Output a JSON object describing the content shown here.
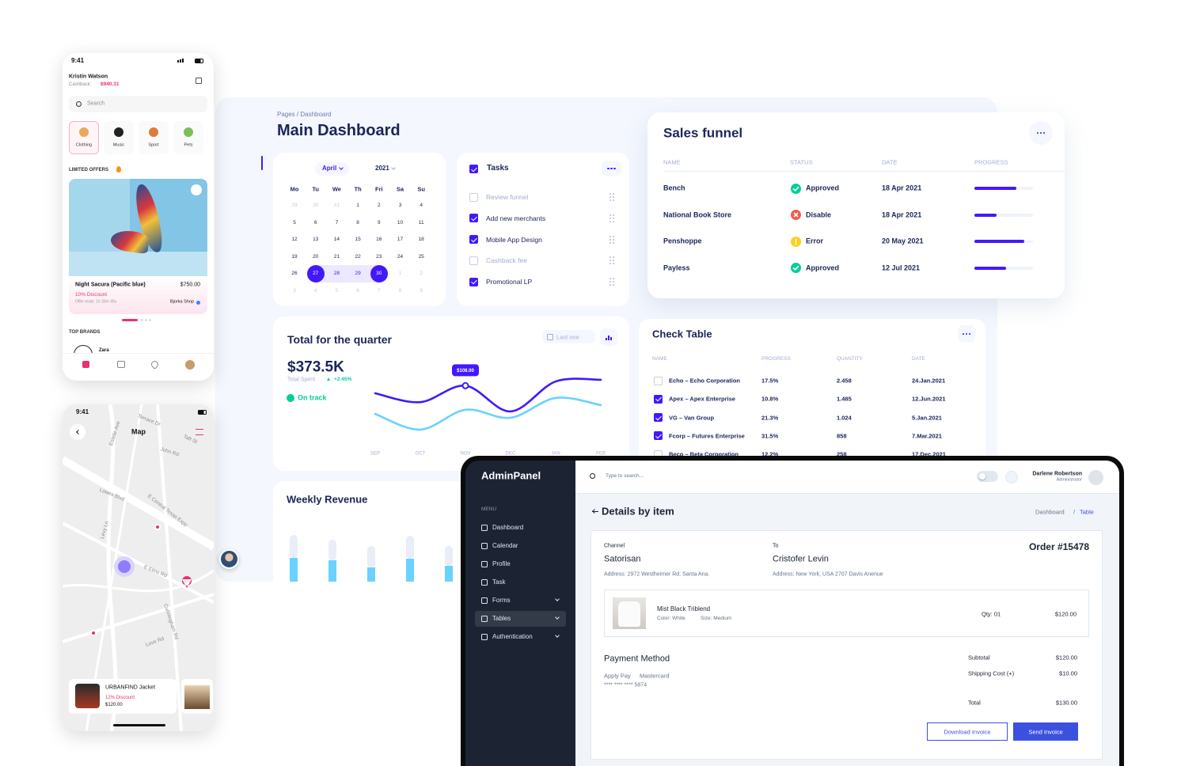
{
  "phone_shop": {
    "time": "9:41",
    "user": "Kristin Watson",
    "cashback_label": "Cashback:",
    "cashback": "$940.31",
    "search": "Search",
    "categories": [
      "Clothing",
      "Music",
      "Sport",
      "Pets"
    ],
    "offers_title": "LIMITED OFFERS",
    "product": {
      "name": "Night Sacura (Pacific blue)",
      "price": "$750.00",
      "discount": "10% Discount",
      "offer_ends": "Offer ends: 1h 30m 45s",
      "shop": "Bjorka Shop"
    },
    "brands_title": "TOP BRANDS",
    "brand": "Zara"
  },
  "phone_map": {
    "time": "9:41",
    "title": "Map",
    "streets": [
      "Terrace Dr",
      "Taft St",
      "John Rd",
      "Estelle Ave",
      "Lowes Blvd",
      "E Central Texas Expy",
      "Levy Ln",
      "E Elms Rd",
      "Cunningham Rd",
      "Love Rd"
    ],
    "product": {
      "name": "URBANFIND Jacket",
      "discount": "12% Discount",
      "price": "$120.00"
    }
  },
  "dashboard": {
    "breadcrumb": "Pages / Dashboard",
    "title": "Main Dashboard",
    "calendar": {
      "month": "April",
      "year": "2021",
      "weekdays": [
        "Mo",
        "Tu",
        "We",
        "Th",
        "Fri",
        "Sa",
        "Su"
      ],
      "prev_month": [
        29,
        30,
        31
      ],
      "month_days": [
        1,
        2,
        3,
        4,
        5,
        6,
        7,
        8,
        9,
        10,
        11,
        12,
        13,
        14,
        15,
        16,
        17,
        18,
        19,
        20,
        21,
        22,
        23,
        24,
        25,
        26,
        27,
        28,
        29,
        30
      ],
      "next_month": [
        1,
        2,
        3,
        4,
        5,
        6,
        7,
        8,
        9
      ],
      "selected": [
        27,
        30
      ]
    },
    "tasks": {
      "title": "Tasks",
      "checked": true,
      "items": [
        {
          "label": "Review funnel",
          "checked": false
        },
        {
          "label": "Add new merchants",
          "checked": true
        },
        {
          "label": "Mobile App Design",
          "checked": true
        },
        {
          "label": "Cashback fee",
          "checked": false
        },
        {
          "label": "Promotional LP",
          "checked": true
        }
      ]
    },
    "sales_funnel": {
      "title": "Sales funnel",
      "columns": [
        "NAME",
        "STATUS",
        "DATE",
        "PROGRESS"
      ],
      "progress_range": [
        0,
        100
      ],
      "progress_color": "#4318ff",
      "rows": [
        {
          "name": "Bench",
          "status": "Approved",
          "status_icon": "check",
          "status_color": "#05cd99",
          "date": "18 Apr 2021",
          "progress": 72
        },
        {
          "name": "National Book Store",
          "status": "Disable",
          "status_icon": "cross",
          "status_color": "#ee5d50",
          "date": "18 Apr 2021",
          "progress": 38
        },
        {
          "name": "Penshoppe",
          "status": "Error",
          "status_icon": "alert",
          "status_color": "#ffce20",
          "date": "20 May 2021",
          "progress": 85
        },
        {
          "name": "Payless",
          "status": "Approved",
          "status_icon": "check",
          "status_color": "#05cd99",
          "date": "12 Jul 2021",
          "progress": 54
        }
      ]
    },
    "check_table": {
      "title": "Check Table",
      "columns": [
        "NAME",
        "PROGRESS",
        "QUANTITY",
        "DATE"
      ],
      "rows": [
        {
          "checked": false,
          "name": "Echo – Echo Corporation",
          "progress": "17.5%",
          "quantity": "2.458",
          "date": "24.Jan.2021"
        },
        {
          "checked": true,
          "name": "Apex – Apex Enterprise",
          "progress": "10.8%",
          "quantity": "1.485",
          "date": "12.Jun.2021"
        },
        {
          "checked": true,
          "name": "VG – Van Group",
          "progress": "21.3%",
          "quantity": "1.024",
          "date": "5.Jan.2021"
        },
        {
          "checked": true,
          "name": "Fcorp – Futures Enterprise",
          "progress": "31.5%",
          "quantity": "858",
          "date": "7.Mar.2021"
        },
        {
          "checked": false,
          "name": "Beco – Beta Corporation",
          "progress": "12.2%",
          "quantity": "258",
          "date": "17.Dec.2021"
        }
      ]
    }
  },
  "chart_data": [
    {
      "type": "line",
      "title": "Total for the quarter",
      "last_period": "Last one",
      "total": "$373.5K",
      "total_label": "Total Spent",
      "change": "+2.45%",
      "status": "On track",
      "categories": [
        "SEP",
        "OCT",
        "NOV",
        "DEC",
        "JAN",
        "FEB"
      ],
      "ylim": [
        0,
        150
      ],
      "series": [
        {
          "color": "#4318ff",
          "values": [
            90,
            69,
            108,
            47,
            118,
            122
          ],
          "value_labels": [
            null,
            null,
            "$108.00",
            null,
            null,
            null
          ]
        },
        {
          "color": "#6ad2ff",
          "values": [
            41,
            4,
            51,
            32,
            79,
            62
          ]
        }
      ]
    },
    {
      "type": "bar",
      "title": "Weekly Revenue",
      "stacked": true,
      "categories": [
        null,
        null,
        null,
        null,
        null
      ],
      "ylim": [
        0,
        70
      ],
      "series": [
        {
          "color": "#6ad2ff",
          "values": [
            30,
            27,
            18,
            29,
            20
          ]
        },
        {
          "color": "#e9edf7",
          "values": [
            29,
            26,
            27,
            29,
            25
          ]
        }
      ]
    }
  ],
  "admin": {
    "brand": "AdminPanel",
    "menu_title": "MENU",
    "menu": [
      {
        "label": "Dashboard"
      },
      {
        "label": "Calendar"
      },
      {
        "label": "Profile"
      },
      {
        "label": "Task"
      },
      {
        "label": "Forms",
        "expandable": true
      },
      {
        "label": "Tables",
        "expandable": true,
        "active": true
      },
      {
        "label": "Authentication",
        "expandable": true
      }
    ],
    "search": "Type to search...",
    "user": "Darlene Robertson",
    "role": "Administrator",
    "heading": "Details by item",
    "breadcrumb": [
      "Dashboard",
      "/",
      "Table"
    ],
    "channel_label": "Channel",
    "channel": "Satorisan",
    "channel_address": "Address: 2972 Westheimer Rd. Santa Ana.",
    "to_label": "To",
    "to": "Cristofer Levin",
    "to_address": "Address: New York, USA 2707 Davis Anenue",
    "order": "Order #15478",
    "item": {
      "name": "Mist Black Triblend",
      "color": "Color: White",
      "size": "Size: Medium",
      "qty": "Qty: 01",
      "price": "$120.00"
    },
    "payment_title": "Payment Method",
    "payment_methods": [
      "Apply Pay",
      "Mastercard"
    ],
    "card_number": "**** **** **** 5874",
    "summary": [
      {
        "label": "Subtotal",
        "value": "$120.00"
      },
      {
        "label": "Shipping Cost (+)",
        "value": "$10.00"
      },
      {
        "label": "Total",
        "value": "$130.00"
      }
    ],
    "buttons": [
      "Download Invoice",
      "Send Invoice"
    ]
  }
}
